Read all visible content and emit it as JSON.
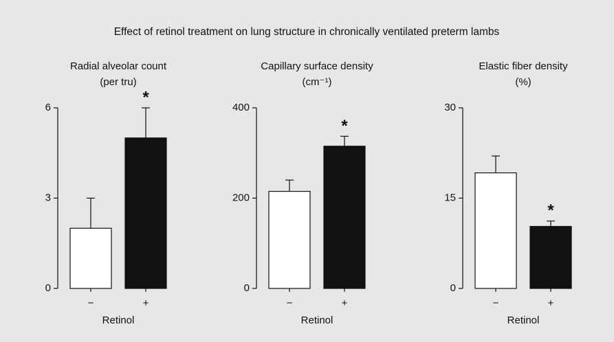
{
  "title": "Effect of retinol treatment on lung structure in chronically ventilated preterm lambs",
  "chart_data": [
    {
      "type": "bar",
      "title": "Radial alveolar count",
      "subtitle": "(per tru)",
      "x_label": "Retinol",
      "categories": [
        "−",
        "+"
      ],
      "values": [
        2,
        5
      ],
      "errors": [
        1,
        1
      ],
      "colors": [
        "#ffffff",
        "#111111"
      ],
      "value_annotations": [
        null,
        "*"
      ],
      "ylim": [
        0,
        6
      ],
      "yticks": [
        0,
        3,
        6
      ]
    },
    {
      "type": "bar",
      "title": "Capillary surface density",
      "subtitle": "(cm⁻¹)",
      "x_label": "Retinol",
      "categories": [
        "−",
        "+"
      ],
      "values": [
        215,
        315
      ],
      "errors": [
        25,
        22
      ],
      "colors": [
        "#ffffff",
        "#111111"
      ],
      "value_annotations": [
        null,
        "*"
      ],
      "ylim": [
        0,
        400
      ],
      "yticks": [
        0,
        200,
        400
      ]
    },
    {
      "type": "bar",
      "title": "Elastic fiber density",
      "subtitle": "(%)",
      "x_label": "Retinol",
      "categories": [
        "−",
        "+"
      ],
      "values": [
        19.2,
        10.3
      ],
      "errors": [
        2.8,
        0.9
      ],
      "colors": [
        "#ffffff",
        "#111111"
      ],
      "value_annotations": [
        null,
        "*"
      ],
      "ylim": [
        0,
        30
      ],
      "yticks": [
        0,
        15,
        30
      ]
    }
  ]
}
